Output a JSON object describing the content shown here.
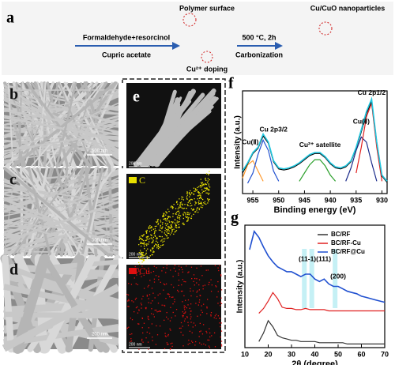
{
  "panel_a": {
    "label": "a",
    "step1_top": "Formaldehyde+resorcinol",
    "step1_bottom": "Cupric acetate",
    "polymer_label": "Polymer surface",
    "doping_label": "Cu²⁺ doping",
    "step2_top": "500 °C, 2h",
    "step2_bottom": "Carbonization",
    "product_label": "Cu/CuO nanoparticles"
  },
  "micrographs": [
    {
      "label": "b",
      "scale": "500 nm"
    },
    {
      "label": "c",
      "scale": "500 nm"
    },
    {
      "label": "d",
      "scale": "200 nm"
    }
  ],
  "mapping": {
    "label": "e",
    "panels": [
      {
        "scale": "200 nm"
      },
      {
        "element": "C",
        "scale": "200 nm"
      },
      {
        "element": "Cu",
        "scale": "200 nm"
      }
    ]
  },
  "chart_data": [
    {
      "type": "line",
      "label": "f",
      "xlabel": "Binding energy (eV)",
      "ylabel": "Intensity (a.u.)",
      "x": [
        957,
        956,
        955,
        954,
        953,
        952,
        951,
        950,
        949,
        948,
        947,
        946,
        945,
        944,
        943,
        942,
        941,
        940,
        939,
        938,
        937,
        936,
        935,
        934,
        933,
        932,
        931,
        930,
        929
      ],
      "xlim": [
        957,
        929
      ],
      "ylim": [
        0,
        1
      ],
      "xticks": [
        955,
        950,
        945,
        940,
        935,
        930
      ],
      "series": [
        {
          "color": "#ff9a2e",
          "values": [
            0.15,
            0.28,
            0.32,
            0.22,
            0.12,
            null,
            null,
            null,
            null,
            null,
            null,
            null,
            null,
            null,
            null,
            null,
            null,
            null,
            null,
            null,
            null,
            null,
            null,
            null,
            null,
            null,
            null,
            null,
            null
          ]
        },
        {
          "color": "#2050d0",
          "values": [
            null,
            0.1,
            0.2,
            0.38,
            0.52,
            0.42,
            0.22,
            0.12,
            null,
            null,
            null,
            null,
            null,
            null,
            null,
            null,
            null,
            null,
            null,
            null,
            null,
            null,
            null,
            null,
            null,
            null,
            null,
            null,
            null
          ]
        },
        {
          "color": "#2ca02c",
          "values": [
            null,
            null,
            null,
            null,
            null,
            null,
            null,
            null,
            null,
            null,
            null,
            0.12,
            0.2,
            0.28,
            0.33,
            0.33,
            0.27,
            0.18,
            0.12,
            null,
            null,
            null,
            null,
            null,
            null,
            null,
            null,
            null,
            null
          ]
        },
        {
          "color": "#1a2a8a",
          "values": [
            null,
            null,
            null,
            null,
            null,
            null,
            null,
            null,
            null,
            null,
            null,
            null,
            null,
            null,
            null,
            null,
            null,
            null,
            null,
            null,
            0.12,
            0.25,
            0.42,
            0.55,
            0.5,
            0.3,
            0.12,
            null,
            null
          ]
        },
        {
          "color": "#e02020",
          "values": [
            null,
            null,
            null,
            null,
            null,
            null,
            null,
            null,
            null,
            null,
            null,
            null,
            null,
            null,
            null,
            null,
            null,
            null,
            null,
            null,
            null,
            null,
            0.2,
            0.45,
            0.75,
            0.88,
            0.45,
            0.12,
            null
          ]
        },
        {
          "color": "#000000",
          "values": [
            0.2,
            0.29,
            0.39,
            0.44,
            0.56,
            0.49,
            0.31,
            0.24,
            0.23,
            0.24,
            0.26,
            0.29,
            0.33,
            0.37,
            0.39,
            0.39,
            0.35,
            0.29,
            0.25,
            0.24,
            0.26,
            0.31,
            0.44,
            0.6,
            0.78,
            0.9,
            0.5,
            0.17,
            0.11
          ]
        },
        {
          "color": "#22c8e0",
          "values": [
            0.22,
            0.3,
            0.4,
            0.45,
            0.58,
            0.5,
            0.32,
            0.25,
            0.24,
            0.25,
            0.27,
            0.3,
            0.34,
            0.38,
            0.4,
            0.4,
            0.36,
            0.3,
            0.26,
            0.25,
            0.27,
            0.32,
            0.45,
            0.62,
            0.8,
            0.92,
            0.5,
            0.18,
            0.12
          ]
        }
      ],
      "annotations": [
        {
          "text": "Cu(Ⅱ)",
          "x": 955.5,
          "y": 0.5
        },
        {
          "text": "Cu 2p3/2",
          "x": 951,
          "y": 0.62
        },
        {
          "text": "Cu²⁺ satellite",
          "x": 942,
          "y": 0.47
        },
        {
          "text": "Cu(Ⅱ)",
          "x": 934,
          "y": 0.7
        },
        {
          "text": "Cu 2p1/2",
          "x": 932,
          "y": 0.98
        }
      ]
    },
    {
      "type": "line",
      "label": "g",
      "xlabel": "2θ (degree)",
      "ylabel": "Intensity (a.u.)",
      "x": [
        10,
        12,
        14,
        16,
        18,
        20,
        22,
        24,
        26,
        28,
        30,
        32,
        34,
        36,
        38,
        40,
        42,
        44,
        46,
        48,
        50,
        52,
        54,
        56,
        58,
        60,
        62,
        64,
        66,
        68,
        70
      ],
      "xlim": [
        10,
        70
      ],
      "ylim": [
        0,
        1
      ],
      "xticks": [
        10,
        20,
        30,
        40,
        50,
        60,
        70
      ],
      "bands": [
        35.5,
        38.7,
        48.7
      ],
      "series": [
        {
          "name": "BC/RF",
          "color": "#333333",
          "values": [
            null,
            null,
            null,
            0.05,
            0.12,
            0.22,
            0.17,
            0.1,
            0.08,
            0.07,
            0.06,
            0.06,
            0.05,
            0.05,
            0.05,
            0.05,
            0.04,
            0.04,
            0.04,
            0.04,
            0.04,
            0.04,
            0.03,
            0.03,
            0.03,
            0.03,
            0.03,
            0.03,
            0.03,
            0.03,
            0.03
          ]
        },
        {
          "name": "BC/RF-Cu",
          "color": "#e02020",
          "values": [
            null,
            null,
            null,
            0.28,
            0.32,
            0.38,
            0.45,
            0.4,
            0.33,
            0.32,
            0.32,
            0.31,
            0.31,
            0.32,
            0.31,
            0.31,
            0.31,
            0.31,
            0.3,
            0.3,
            0.3,
            0.3,
            0.3,
            0.3,
            0.3,
            0.3,
            0.3,
            0.3,
            0.3,
            0.3,
            0.3
          ]
        },
        {
          "name": "BC/RF@Cu",
          "color": "#2050d0",
          "values": [
            null,
            0.8,
            0.95,
            0.9,
            0.82,
            0.75,
            0.7,
            0.66,
            0.64,
            0.62,
            0.62,
            0.6,
            0.58,
            0.6,
            0.6,
            0.56,
            0.54,
            0.56,
            0.52,
            0.5,
            0.5,
            0.48,
            0.46,
            0.45,
            0.44,
            0.42,
            0.41,
            0.4,
            0.39,
            0.38,
            0.37
          ]
        }
      ],
      "annotations": [
        {
          "text": "(11-1)(111)",
          "x": 40,
          "y": 0.72
        },
        {
          "text": "(200)",
          "x": 50,
          "y": 0.58
        }
      ]
    }
  ]
}
